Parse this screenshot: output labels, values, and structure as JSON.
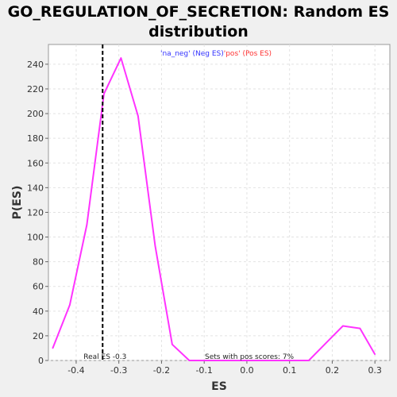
{
  "chart_data": {
    "type": "line",
    "title_line1": "GO_REGULATION_OF_SECRETION: Random ES",
    "title_line2": "distribution",
    "xlabel": "ES",
    "ylabel": "P(ES)",
    "xlim": [
      -0.465,
      0.335
    ],
    "ylim": [
      0,
      256
    ],
    "xticks": [
      -0.4,
      -0.3,
      -0.2,
      -0.1,
      0.0,
      0.1,
      0.2,
      0.3
    ],
    "xtick_labels": [
      "-0.4",
      "-0.3",
      "-0.2",
      "-0.1",
      "0.0",
      "0.1",
      "0.2",
      "0.3"
    ],
    "yticks": [
      0,
      20,
      40,
      60,
      80,
      100,
      120,
      140,
      160,
      180,
      200,
      220,
      240
    ],
    "ytick_labels": [
      "0",
      "20",
      "40",
      "60",
      "80",
      "100",
      "120",
      "140",
      "160",
      "180",
      "200",
      "220",
      "240"
    ],
    "grid": true,
    "series": [
      {
        "color": "#ff33ff",
        "x": [
          -0.455,
          -0.415,
          -0.375,
          -0.335,
          -0.295,
          -0.255,
          -0.215,
          -0.175,
          -0.135,
          -0.095,
          -0.055,
          -0.015,
          0.025,
          0.065,
          0.105,
          0.145,
          0.185,
          0.225,
          0.265,
          0.3
        ],
        "y": [
          10,
          45,
          110,
          216,
          245,
          198,
          93,
          13,
          0,
          0,
          0,
          0,
          0,
          0,
          0,
          0,
          14,
          28,
          26,
          5
        ]
      }
    ],
    "legend": {
      "position": "top-center",
      "entries": [
        {
          "label": "'na_neg' (Neg ES)",
          "color": "#3333ff"
        },
        {
          "label": "'pos' (Pos ES)",
          "color": "#ff3333"
        }
      ]
    },
    "real_es": {
      "x": -0.338,
      "label": "Real ES -0.3"
    },
    "pos_scores_note": "Sets with pos scores: 7%"
  }
}
